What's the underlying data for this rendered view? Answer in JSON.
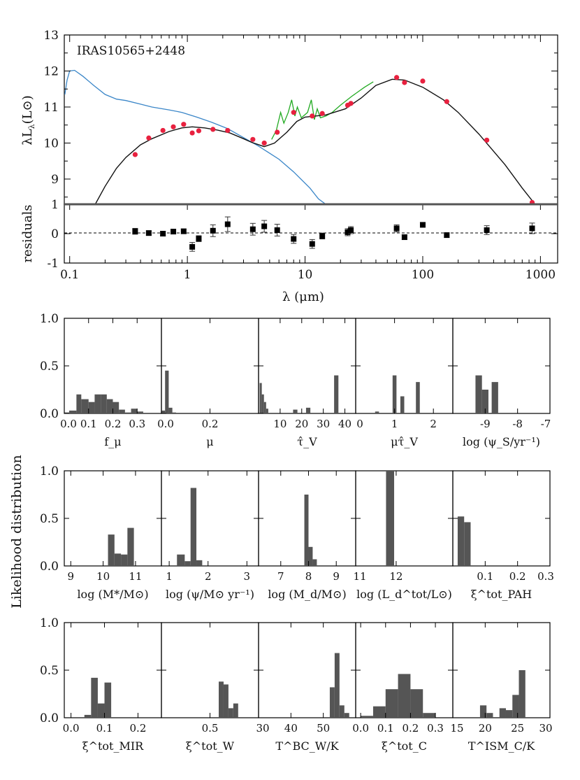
{
  "sed": {
    "label": "IRAS10565+2448",
    "ylabel": "λL_λ(L_⊙)",
    "ylabel_main": "λL",
    "ylabel_sub": "λ",
    "ylabel_unit": "(L⊙)",
    "xlabel": "λ (μm)",
    "residuals_label": "residuals",
    "xlim": [
      0.09,
      1400
    ],
    "ylim": [
      8.3,
      13
    ],
    "yticks": [
      "9",
      "10",
      "11",
      "12",
      "13"
    ],
    "xticks": [
      "0.1",
      "1",
      "10",
      "100",
      "1000"
    ],
    "residual_ylim": [
      -1,
      1
    ],
    "residual_yticks": [
      "-1",
      "0",
      "1"
    ],
    "colors": {
      "stellar": "#3a86c8",
      "fit": "#111111",
      "spectrum": "#22aa22",
      "points": "#e8213f"
    },
    "stellar_unattenuated": [
      [
        0.091,
        11.35
      ],
      [
        0.095,
        11.75
      ],
      [
        0.1,
        12.0
      ],
      [
        0.11,
        12.02
      ],
      [
        0.13,
        11.85
      ],
      [
        0.16,
        11.6
      ],
      [
        0.2,
        11.35
      ],
      [
        0.25,
        11.22
      ],
      [
        0.3,
        11.18
      ],
      [
        0.4,
        11.08
      ],
      [
        0.5,
        11.0
      ],
      [
        0.7,
        10.92
      ],
      [
        0.9,
        10.85
      ],
      [
        1.2,
        10.72
      ],
      [
        1.6,
        10.58
      ],
      [
        2.2,
        10.4
      ],
      [
        3.0,
        10.15
      ],
      [
        4.0,
        9.92
      ],
      [
        6.0,
        9.55
      ],
      [
        8.0,
        9.2
      ],
      [
        11.0,
        8.75
      ],
      [
        13.0,
        8.45
      ],
      [
        15.0,
        8.2
      ]
    ],
    "model_fit": [
      [
        0.165,
        8.3
      ],
      [
        0.2,
        8.8
      ],
      [
        0.25,
        9.3
      ],
      [
        0.3,
        9.6
      ],
      [
        0.4,
        9.95
      ],
      [
        0.5,
        10.12
      ],
      [
        0.7,
        10.32
      ],
      [
        0.9,
        10.42
      ],
      [
        1.1,
        10.45
      ],
      [
        1.4,
        10.42
      ],
      [
        1.8,
        10.36
      ],
      [
        2.3,
        10.28
      ],
      [
        3.0,
        10.12
      ],
      [
        3.5,
        10.02
      ],
      [
        4.5,
        9.9
      ],
      [
        5.5,
        10.0
      ],
      [
        7.0,
        10.3
      ],
      [
        8.5,
        10.6
      ],
      [
        10.0,
        10.72
      ],
      [
        15.0,
        10.78
      ],
      [
        22.0,
        10.95
      ],
      [
        30.0,
        11.25
      ],
      [
        40.0,
        11.6
      ],
      [
        55.0,
        11.77
      ],
      [
        70.0,
        11.75
      ],
      [
        100.0,
        11.55
      ],
      [
        150.0,
        11.2
      ],
      [
        200.0,
        10.85
      ],
      [
        300.0,
        10.25
      ],
      [
        500.0,
        9.4
      ],
      [
        700.0,
        8.75
      ],
      [
        900.0,
        8.3
      ]
    ],
    "ir_spectrum": [
      [
        5.2,
        10.1
      ],
      [
        5.7,
        10.35
      ],
      [
        6.2,
        10.85
      ],
      [
        6.6,
        10.55
      ],
      [
        7.2,
        10.85
      ],
      [
        7.7,
        11.2
      ],
      [
        8.2,
        10.75
      ],
      [
        8.6,
        11.0
      ],
      [
        9.3,
        10.7
      ],
      [
        10.5,
        10.85
      ],
      [
        11.3,
        11.2
      ],
      [
        12.0,
        10.65
      ],
      [
        12.7,
        10.95
      ],
      [
        13.5,
        10.7
      ],
      [
        15.0,
        10.75
      ],
      [
        17.0,
        10.85
      ],
      [
        20.0,
        11.05
      ],
      [
        25.0,
        11.3
      ],
      [
        32.0,
        11.55
      ],
      [
        38.0,
        11.7
      ]
    ],
    "photometry": [
      {
        "x": 0.36,
        "y": 9.68,
        "res": 0.08,
        "err": 0.1
      },
      {
        "x": 0.47,
        "y": 10.14,
        "res": 0.02,
        "err": 0.08
      },
      {
        "x": 0.62,
        "y": 10.35,
        "res": 0.0,
        "err": 0.08
      },
      {
        "x": 0.76,
        "y": 10.45,
        "res": 0.07,
        "err": 0.08
      },
      {
        "x": 0.93,
        "y": 10.52,
        "res": 0.08,
        "err": 0.08
      },
      {
        "x": 1.1,
        "y": 10.28,
        "res": -0.45,
        "err": 0.15
      },
      {
        "x": 1.25,
        "y": 10.34,
        "res": -0.17,
        "err": 0.1
      },
      {
        "x": 1.65,
        "y": 10.38,
        "res": 0.1,
        "err": 0.2
      },
      {
        "x": 2.2,
        "y": 10.35,
        "res": 0.32,
        "err": 0.25
      },
      {
        "x": 3.6,
        "y": 10.1,
        "res": 0.15,
        "err": 0.2
      },
      {
        "x": 4.5,
        "y": 10.0,
        "res": 0.25,
        "err": 0.2
      },
      {
        "x": 5.8,
        "y": 10.3,
        "res": 0.12,
        "err": 0.2
      },
      {
        "x": 8.0,
        "y": 10.85,
        "res": -0.18,
        "err": 0.15
      },
      {
        "x": 11.5,
        "y": 10.75,
        "res": -0.35,
        "err": 0.15
      },
      {
        "x": 14.0,
        "y": 10.82,
        "res": -0.08,
        "err": 0.1
      },
      {
        "x": 23.0,
        "y": 11.05,
        "res": 0.05,
        "err": 0.12
      },
      {
        "x": 24.5,
        "y": 11.1,
        "res": 0.12,
        "err": 0.12
      },
      {
        "x": 60.0,
        "y": 11.82,
        "res": 0.18,
        "err": 0.12
      },
      {
        "x": 70.0,
        "y": 11.68,
        "res": -0.12,
        "err": 0.08
      },
      {
        "x": 100.0,
        "y": 11.72,
        "res": 0.3,
        "err": 0.08
      },
      {
        "x": 160.0,
        "y": 11.15,
        "res": -0.05,
        "err": 0.08
      },
      {
        "x": 350.0,
        "y": 10.08,
        "res": 0.12,
        "err": 0.15
      },
      {
        "x": 850.0,
        "y": 8.35,
        "res": 0.18,
        "err": 0.18
      }
    ]
  },
  "likelihood_label": "Likelihood distribution",
  "chart_data": [
    {
      "type": "bar",
      "name": "f_mu",
      "xlabel": "f_μ",
      "xlim": [
        0,
        0.4
      ],
      "ylim": [
        0,
        1
      ],
      "xticks": [
        "0.0",
        "0.1",
        "0.2",
        "0.3"
      ],
      "xtickvals": [
        0,
        0.1,
        0.2,
        0.3
      ],
      "bins": [
        [
          0.0,
          0.02,
          0.01
        ],
        [
          0.02,
          0.05,
          0.03
        ],
        [
          0.05,
          0.07,
          0.2
        ],
        [
          0.07,
          0.1,
          0.15
        ],
        [
          0.1,
          0.125,
          0.12
        ],
        [
          0.125,
          0.15,
          0.2
        ],
        [
          0.15,
          0.175,
          0.2
        ],
        [
          0.175,
          0.2,
          0.15
        ],
        [
          0.2,
          0.225,
          0.12
        ],
        [
          0.225,
          0.25,
          0.04
        ],
        [
          0.25,
          0.275,
          0.01
        ],
        [
          0.275,
          0.3,
          0.05
        ],
        [
          0.3,
          0.325,
          0.02
        ]
      ]
    },
    {
      "type": "bar",
      "name": "mu",
      "xlabel": "μ",
      "xlim": [
        0,
        0.4
      ],
      "ylim": [
        0,
        1
      ],
      "xticks": [
        "0.0",
        "0.2"
      ],
      "xtickvals": [
        0,
        0.2
      ],
      "bins": [
        [
          0.0,
          0.015,
          0.03
        ],
        [
          0.015,
          0.03,
          0.45
        ],
        [
          0.03,
          0.045,
          0.06
        ],
        [
          0.045,
          0.06,
          0.01
        ]
      ]
    },
    {
      "type": "bar",
      "name": "tau_v",
      "xlabel": "τ̂_V",
      "xlim": [
        0,
        45
      ],
      "ylim": [
        0,
        1
      ],
      "xticks": [
        "10",
        "20",
        "30",
        "40"
      ],
      "xtickvals": [
        10,
        20,
        30,
        40
      ],
      "bins": [
        [
          0.5,
          1.5,
          0.32
        ],
        [
          1.5,
          2.5,
          0.2
        ],
        [
          2.5,
          3.5,
          0.12
        ],
        [
          3.5,
          4.5,
          0.05
        ],
        [
          16,
          18,
          0.04
        ],
        [
          22,
          24,
          0.06
        ],
        [
          35,
          37,
          0.4
        ]
      ]
    },
    {
      "type": "bar",
      "name": "mu_tau_v",
      "xlabel": "μτ̂_V",
      "xlim": [
        0,
        2.5
      ],
      "ylim": [
        0,
        1
      ],
      "xticks": [
        "0",
        "1",
        "2"
      ],
      "xtickvals": [
        0,
        1,
        2
      ],
      "bins": [
        [
          0.5,
          0.6,
          0.02
        ],
        [
          0.95,
          1.05,
          0.4
        ],
        [
          1.15,
          1.25,
          0.18
        ],
        [
          1.55,
          1.65,
          0.33
        ]
      ]
    },
    {
      "type": "bar",
      "name": "log_psi_s",
      "xlabel": "log (ψ_S/yr⁻¹)",
      "xlim": [
        -10,
        -7
      ],
      "ylim": [
        0,
        1
      ],
      "xticks": [
        "-9",
        "-8",
        "-7"
      ],
      "xtickvals": [
        -9,
        -8,
        -7
      ],
      "bins": [
        [
          -9.3,
          -9.1,
          0.4
        ],
        [
          -9.1,
          -8.9,
          0.25
        ],
        [
          -8.8,
          -8.6,
          0.33
        ]
      ]
    },
    {
      "type": "bar",
      "name": "log_mstar",
      "xlabel": "log (M*/M⊙)",
      "xlim": [
        8.8,
        11.8
      ],
      "ylim": [
        0,
        1
      ],
      "xticks": [
        "9",
        "10",
        "11"
      ],
      "xtickvals": [
        9,
        10,
        11
      ],
      "bins": [
        [
          10.15,
          10.35,
          0.33
        ],
        [
          10.35,
          10.55,
          0.13
        ],
        [
          10.55,
          10.75,
          0.12
        ],
        [
          10.75,
          10.95,
          0.4
        ]
      ]
    },
    {
      "type": "bar",
      "name": "log_psi",
      "xlabel": "log (ψ/M⊙ yr⁻¹)",
      "xlim": [
        0.8,
        3.3
      ],
      "ylim": [
        0,
        1
      ],
      "xticks": [
        "1",
        "2",
        "3"
      ],
      "xtickvals": [
        1,
        2,
        3
      ],
      "bins": [
        [
          1.2,
          1.4,
          0.12
        ],
        [
          1.4,
          1.55,
          0.05
        ],
        [
          1.55,
          1.7,
          0.82
        ],
        [
          1.7,
          1.85,
          0.06
        ]
      ]
    },
    {
      "type": "bar",
      "name": "log_md",
      "xlabel": "log (M_d/M⊙)",
      "xlim": [
        6.2,
        9.7
      ],
      "ylim": [
        0,
        1
      ],
      "xticks": [
        "7",
        "8",
        "9"
      ],
      "xtickvals": [
        7,
        8,
        9
      ],
      "bins": [
        [
          7.85,
          8.0,
          0.75
        ],
        [
          8.0,
          8.15,
          0.2
        ],
        [
          8.15,
          8.3,
          0.07
        ]
      ]
    },
    {
      "type": "bar",
      "name": "log_ld",
      "xlabel": "log (L_d^tot/L⊙)",
      "xlim": [
        11,
        13.4
      ],
      "ylim": [
        0,
        1
      ],
      "xticks": [
        "11",
        "12"
      ],
      "xtickvals": [
        11,
        12
      ],
      "bins": [
        [
          11.75,
          11.95,
          1.0
        ]
      ]
    },
    {
      "type": "bar",
      "name": "xi_pah",
      "xlabel": "ξ^tot_PAH",
      "xlim": [
        0,
        0.3
      ],
      "ylim": [
        0,
        1
      ],
      "xticks": [
        "0.1",
        "0.2",
        "0.3"
      ],
      "xtickvals": [
        0.1,
        0.2,
        0.3
      ],
      "bins": [
        [
          0.0,
          0.015,
          0.0
        ],
        [
          0.015,
          0.035,
          0.52
        ],
        [
          0.035,
          0.055,
          0.46
        ]
      ]
    },
    {
      "type": "bar",
      "name": "xi_mir",
      "xlabel": "ξ^tot_MIR",
      "xlim": [
        -0.02,
        0.27
      ],
      "ylim": [
        0,
        1
      ],
      "xticks": [
        "0.0",
        "0.1",
        "0.2"
      ],
      "xtickvals": [
        0,
        0.1,
        0.2
      ],
      "bins": [
        [
          0.04,
          0.06,
          0.03
        ],
        [
          0.06,
          0.08,
          0.42
        ],
        [
          0.08,
          0.1,
          0.15
        ],
        [
          0.1,
          0.12,
          0.37
        ]
      ]
    },
    {
      "type": "bar",
      "name": "xi_w",
      "xlabel": "ξ^tot_W",
      "xlim": [
        0,
        1
      ],
      "ylim": [
        0,
        1
      ],
      "xticks": [
        "0.5"
      ],
      "xtickvals": [
        0.5
      ],
      "bins": [
        [
          0.59,
          0.64,
          0.38
        ],
        [
          0.64,
          0.69,
          0.35
        ],
        [
          0.69,
          0.74,
          0.1
        ],
        [
          0.74,
          0.79,
          0.15
        ]
      ]
    },
    {
      "type": "bar",
      "name": "t_w_bc",
      "xlabel": "T^BC_W/K",
      "xlim": [
        30,
        60
      ],
      "ylim": [
        0,
        1
      ],
      "xticks": [
        "30",
        "40",
        "50"
      ],
      "xtickvals": [
        30,
        40,
        50
      ],
      "bins": [
        [
          52,
          53.5,
          0.32
        ],
        [
          53.5,
          55,
          0.68
        ],
        [
          55,
          56.5,
          0.13
        ],
        [
          56.5,
          58,
          0.05
        ]
      ]
    },
    {
      "type": "bar",
      "name": "xi_c",
      "xlabel": "ξ^tot_C",
      "xlim": [
        -0.02,
        0.37
      ],
      "ylim": [
        0,
        1
      ],
      "xticks": [
        "0.0",
        "0.1",
        "0.2",
        "0.3"
      ],
      "xtickvals": [
        0,
        0.1,
        0.2,
        0.3
      ],
      "bins": [
        [
          0.0,
          0.05,
          0.02
        ],
        [
          0.05,
          0.1,
          0.12
        ],
        [
          0.1,
          0.15,
          0.3
        ],
        [
          0.15,
          0.2,
          0.46
        ],
        [
          0.2,
          0.25,
          0.3
        ],
        [
          0.25,
          0.3,
          0.05
        ]
      ]
    },
    {
      "type": "bar",
      "name": "t_c_ism",
      "xlabel": "T^ISM_C/K",
      "xlim": [
        15,
        30
      ],
      "ylim": [
        0,
        1
      ],
      "xticks": [
        "15",
        "20",
        "25",
        "30"
      ],
      "xtickvals": [
        15,
        20,
        25,
        30
      ],
      "bins": [
        [
          19.2,
          20.2,
          0.13
        ],
        [
          20.2,
          21.2,
          0.05
        ],
        [
          22.2,
          23.2,
          0.1
        ],
        [
          23.2,
          24.2,
          0.08
        ],
        [
          24.2,
          25.2,
          0.24
        ],
        [
          25.2,
          26.2,
          0.5
        ]
      ]
    }
  ],
  "hist_yticks": [
    "0.0",
    "0.5",
    "1.0"
  ]
}
